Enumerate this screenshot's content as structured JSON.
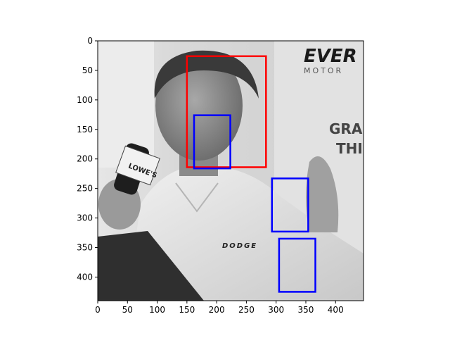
{
  "chart_data": {
    "type": "image_with_bounding_boxes",
    "image": {
      "kind": "photo",
      "color_mode": "grayscale",
      "width": 447,
      "height": 440,
      "scene_text": [
        "EVER",
        "MOTOR",
        "GRA",
        "THI",
        "LOWE'S",
        "DODGE"
      ]
    },
    "axes": {
      "xlim": [
        0,
        447
      ],
      "ylim": [
        440,
        0
      ],
      "xticks": [
        0,
        50,
        100,
        150,
        200,
        250,
        300,
        350,
        400
      ],
      "yticks": [
        0,
        50,
        100,
        150,
        200,
        250,
        300,
        350,
        400
      ],
      "grid": false
    },
    "boxes": [
      {
        "color": "#ff0000",
        "x0": 150,
        "y0": 26,
        "x1": 283,
        "y1": 214
      },
      {
        "color": "#0000ff",
        "x0": 162,
        "y0": 126,
        "x1": 223,
        "y1": 216
      },
      {
        "color": "#0000ff",
        "x0": 293,
        "y0": 233,
        "x1": 354,
        "y1": 323
      },
      {
        "color": "#0000ff",
        "x0": 305,
        "y0": 335,
        "x1": 366,
        "y1": 425
      }
    ]
  }
}
